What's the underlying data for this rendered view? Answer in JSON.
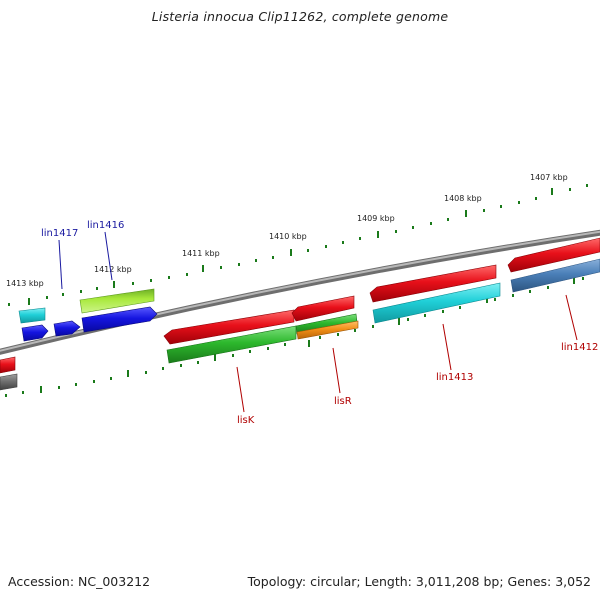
{
  "title": "Listeria innocua Clip11262, complete genome",
  "footer": {
    "accession": "Accession: NC_003212",
    "summary": "Topology: circular; Length: 3,011,208 bp; Genes: 3,052"
  },
  "ticks": [
    "1413 kbp",
    "1412 kbp",
    "1411 kbp",
    "1410 kbp",
    "1409 kbp",
    "1408 kbp",
    "1407 kbp"
  ],
  "genes_blue": [
    "lin1417",
    "lin1416"
  ],
  "genes_red": [
    "lisK",
    "lisR",
    "lin1413",
    "lin1412"
  ],
  "colors": {
    "backbone": "#8c8c8c",
    "red": "#e8101a",
    "green": "#2db82d",
    "lime": "#a8e83a",
    "blue": "#1515e0",
    "cyan": "#20d0d8",
    "orange": "#f39018",
    "steel": "#4a7fb8",
    "gray": "#707070",
    "tick": "#1a7a1a"
  }
}
